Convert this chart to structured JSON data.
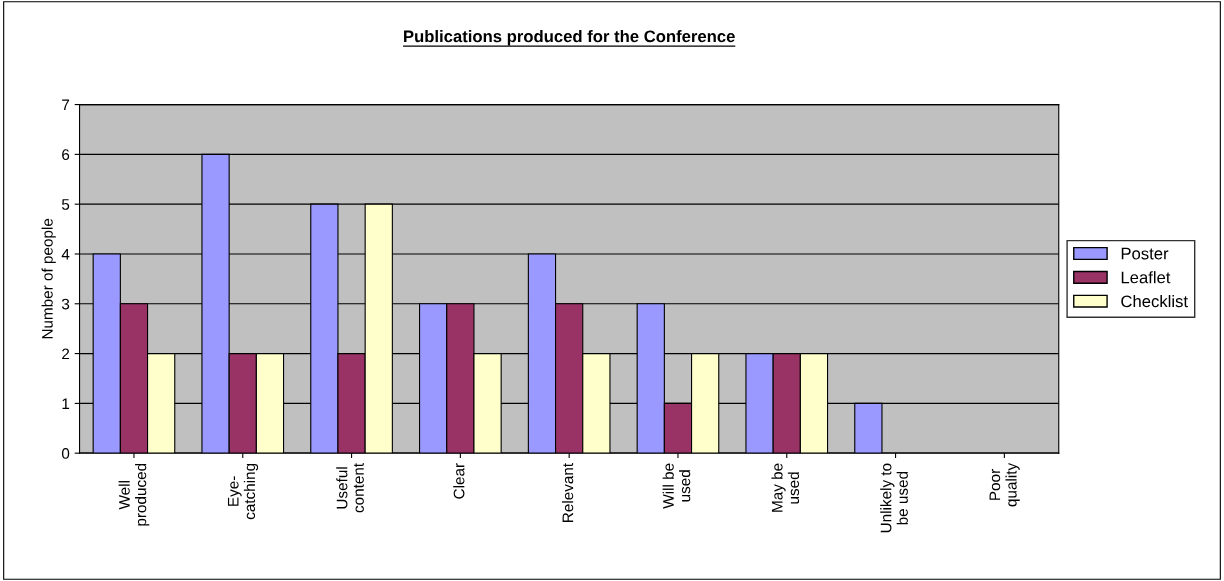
{
  "chart_data": {
    "type": "bar",
    "title": "Publications produced for the Conference",
    "ylabel": "Number of people",
    "categories": [
      "Well\nproduced",
      "Eye-\ncatching",
      "Useful\ncontent",
      "Clear",
      "Relevant",
      "Will be\nused",
      "May be\nused",
      "Unlikely to\nbe used",
      "Poor\nquality"
    ],
    "series": [
      {
        "name": "Poster",
        "color": "#9999ff",
        "values": [
          4,
          6,
          5,
          3,
          4,
          3,
          2,
          1,
          0
        ]
      },
      {
        "name": "Leaflet",
        "color": "#993366",
        "values": [
          3,
          2,
          2,
          3,
          3,
          1,
          2,
          0,
          0
        ]
      },
      {
        "name": "Checklist",
        "color": "#ffffcc",
        "values": [
          2,
          2,
          5,
          2,
          2,
          2,
          2,
          0,
          0
        ]
      }
    ],
    "ylim": [
      0,
      7
    ],
    "yticks": [
      0,
      1,
      2,
      3,
      4,
      5,
      6,
      7
    ],
    "grid": "y",
    "legend": "right"
  }
}
